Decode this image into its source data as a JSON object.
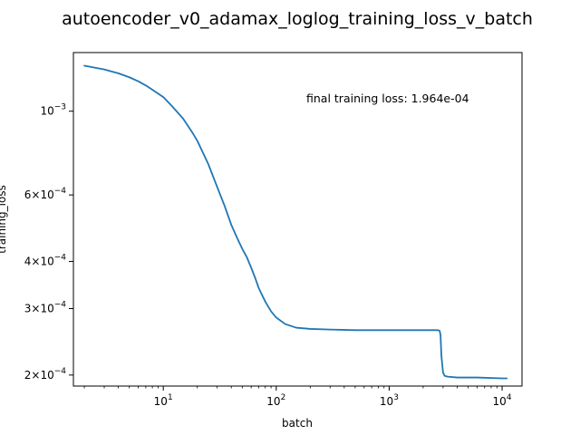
{
  "chart_data": {
    "type": "line",
    "title": "autoencoder_v0_adamax_loglog_training_loss_v_batch",
    "xlabel": "batch",
    "ylabel": "training_loss",
    "xscale": "log",
    "yscale": "log",
    "xlim": [
      1.6,
      15000
    ],
    "ylim": [
      0.000187,
      0.00143
    ],
    "grid": false,
    "annotation": "final training loss: 1.964e-04",
    "xticks": [
      {
        "value": 10,
        "base": "10",
        "exp": "1"
      },
      {
        "value": 100,
        "base": "10",
        "exp": "2"
      },
      {
        "value": 1000,
        "base": "10",
        "exp": "3"
      },
      {
        "value": 10000,
        "base": "10",
        "exp": "4"
      }
    ],
    "yticks": [
      {
        "value": 0.001,
        "mant": "",
        "exp": "−3"
      },
      {
        "value": 0.0006,
        "mant": "6",
        "exp": "−4"
      },
      {
        "value": 0.0004,
        "mant": "4",
        "exp": "−4"
      },
      {
        "value": 0.0003,
        "mant": "3",
        "exp": "−4"
      },
      {
        "value": 0.0002,
        "mant": "2",
        "exp": "−4"
      }
    ],
    "series": [
      {
        "color": "#1f77b4",
        "x": [
          2,
          3,
          4,
          5,
          6,
          7,
          8,
          10,
          12,
          15,
          18,
          20,
          25,
          30,
          35,
          40,
          45,
          50,
          55,
          60,
          65,
          70,
          80,
          90,
          100,
          120,
          150,
          200,
          300,
          500,
          1000,
          2000,
          2700,
          2800,
          2850,
          2900,
          3000,
          3100,
          3300,
          4000,
          6000,
          10000,
          11000
        ],
        "y": [
          0.00132,
          0.00129,
          0.00126,
          0.00123,
          0.0012,
          0.00117,
          0.00114,
          0.00109,
          0.00103,
          0.000955,
          0.00088,
          0.000835,
          0.000725,
          0.00063,
          0.00056,
          0.0005,
          0.000462,
          0.000432,
          0.00041,
          0.000385,
          0.000362,
          0.00034,
          0.000313,
          0.000295,
          0.000284,
          0.000273,
          0.000267,
          0.000265,
          0.000264,
          0.000263,
          0.000263,
          0.000263,
          0.000263,
          0.000262,
          0.000255,
          0.000225,
          0.000203,
          0.000199,
          0.000198,
          0.000197,
          0.000197,
          0.000196,
          0.000196
        ]
      }
    ]
  }
}
